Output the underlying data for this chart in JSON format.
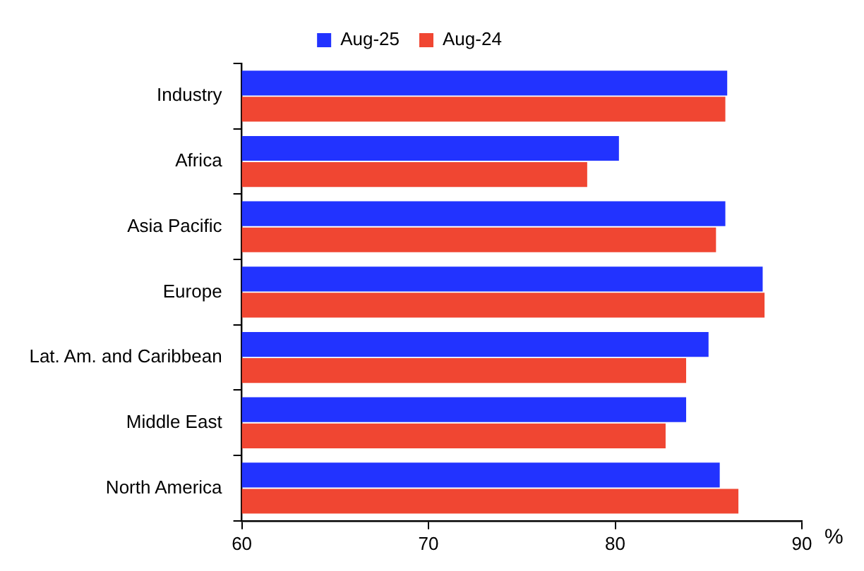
{
  "chart_data": {
    "type": "bar",
    "orientation": "horizontal",
    "xlabel": "%",
    "categories": [
      "Industry",
      "Africa",
      "Asia Pacific",
      "Europe",
      "Lat. Am. and Caribbean",
      "Middle East",
      "North America"
    ],
    "series": [
      {
        "name": "Aug-25",
        "color": "#2233ff",
        "values": [
          86.0,
          80.2,
          85.9,
          87.9,
          85.0,
          83.8,
          85.6
        ]
      },
      {
        "name": "Aug-24",
        "color": "#f04632",
        "values": [
          85.9,
          78.5,
          85.4,
          88.0,
          83.8,
          82.7,
          86.6
        ]
      }
    ],
    "xlim": [
      60,
      90
    ],
    "xticks": [
      60,
      70,
      80,
      90
    ],
    "grid": false,
    "legend": "top"
  }
}
